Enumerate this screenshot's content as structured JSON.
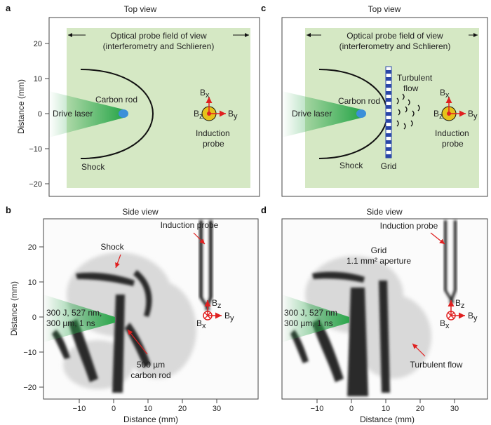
{
  "panels": {
    "a": {
      "letter": "a",
      "title": "Top view",
      "fov_label_1": "Optical probe field of view",
      "fov_label_2": "(interferometry and Schlieren)",
      "rod_label": "Carbon rod",
      "laser_label": "Drive laser",
      "shock_label": "Shock",
      "probe_label_1": "Induction",
      "probe_label_2": "probe",
      "ylabel": "Distance (mm)",
      "yticks": [
        "20",
        "10",
        "0",
        "−10",
        "−20"
      ]
    },
    "c": {
      "letter": "c",
      "title": "Top view",
      "fov_label_1": "Optical probe field of view",
      "fov_label_2": "(interferometry and Schlieren)",
      "rod_label": "Carbon rod",
      "laser_label": "Drive laser",
      "shock_label": "Shock",
      "grid_label": "Grid",
      "turb_label_1": "Turbulent",
      "turb_label_2": "flow",
      "probe_label_1": "Induction",
      "probe_label_2": "probe"
    },
    "b": {
      "letter": "b",
      "title": "Side view",
      "shock_label": "Shock",
      "probe_label": "Induction probe",
      "laser_label_1": "300 J, 527 nm,",
      "laser_label_2": "300 µm, 1 ns",
      "rod_label_1": "500 µm",
      "rod_label_2": "carbon rod",
      "ylabel": "Distance (mm)",
      "xlabel": "Distance (mm)",
      "yticks": [
        "20",
        "10",
        "0",
        "−10",
        "−20"
      ],
      "xticks": [
        "−10",
        "0",
        "10",
        "20",
        "30"
      ]
    },
    "d": {
      "letter": "d",
      "title": "Side view",
      "probe_label": "Induction probe",
      "grid_label_1": "Grid",
      "grid_label_2": "1.1 mm² aperture",
      "laser_label_1": "300 J, 527 nm",
      "laser_label_2": "300 µm, 1 ns",
      "turb_label": "Turbulent flow",
      "xlabel": "Distance (mm)",
      "xticks": [
        "−10",
        "0",
        "10",
        "20",
        "30"
      ]
    }
  },
  "field_symbols": {
    "bx": "B",
    "by": "B",
    "bz": "B",
    "sx": "x",
    "sy": "y",
    "sz": "z"
  },
  "colors": {
    "fov_fill": "#d5e8c4",
    "laser": "#2aa64a",
    "rod": "#3b8fd9",
    "arrow": "#e02020",
    "probe_fill": "#e6c21a",
    "grid_blue": "#2946a8"
  }
}
